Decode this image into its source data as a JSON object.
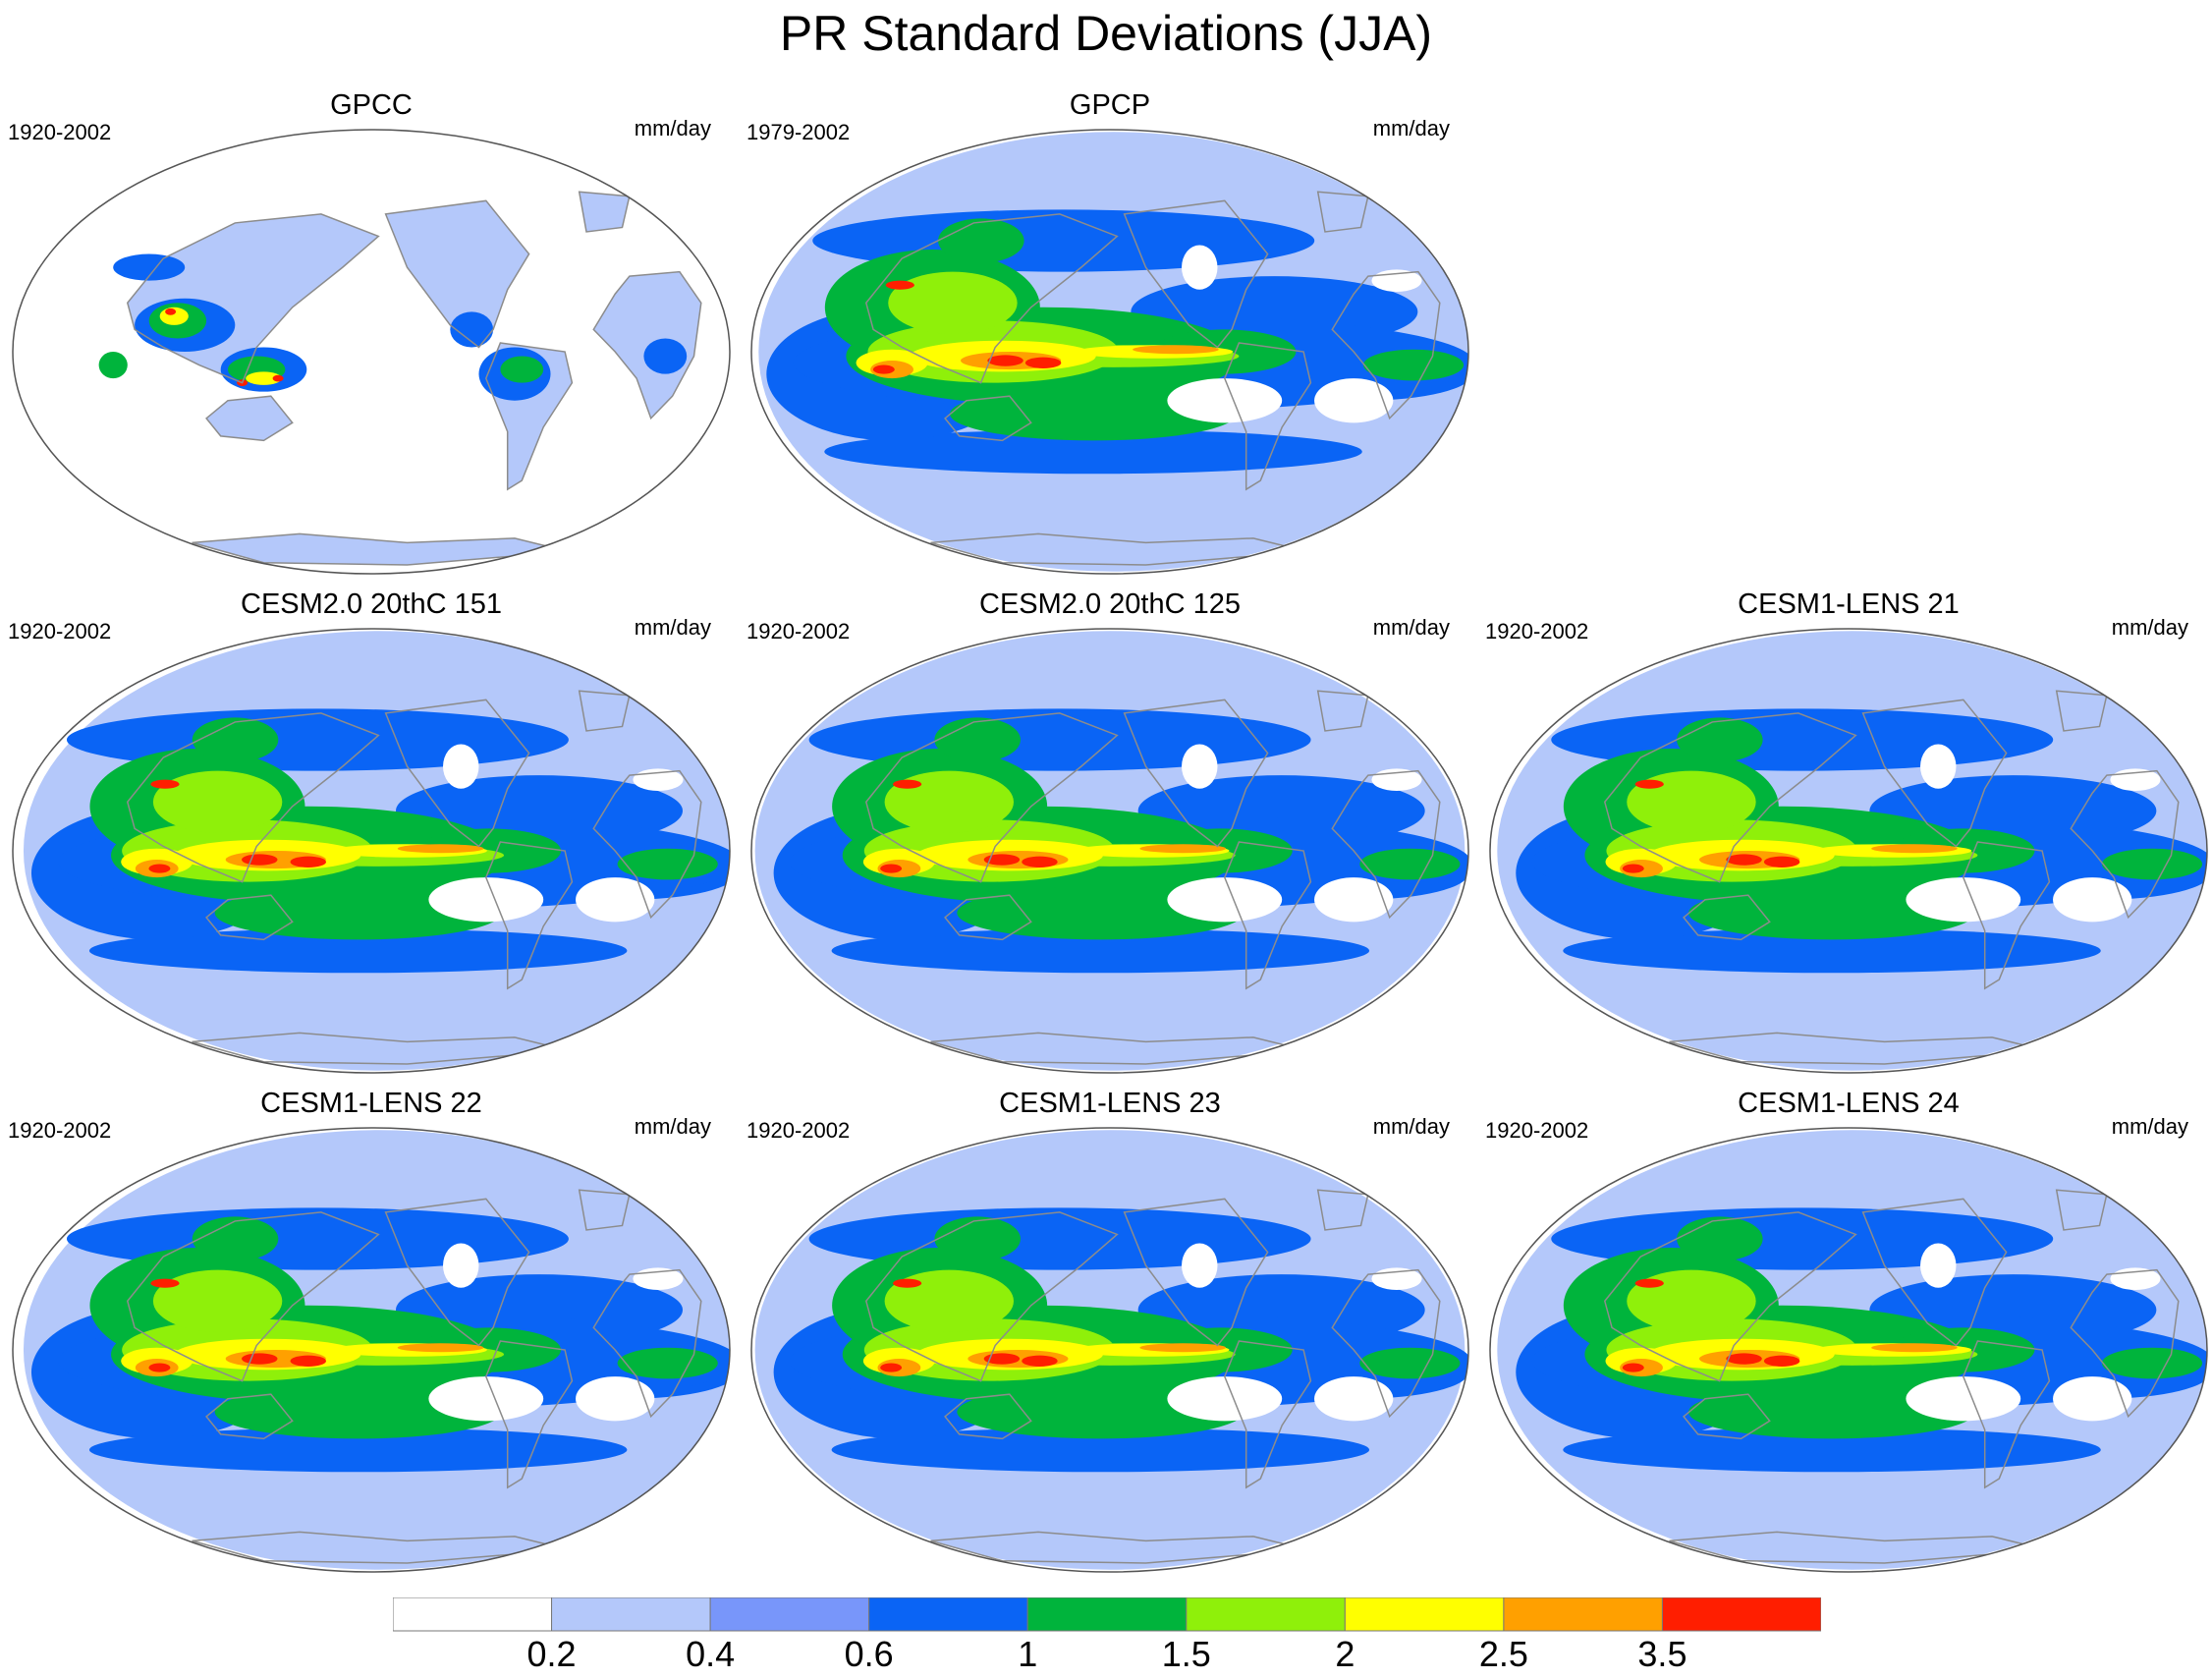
{
  "title": "PR Standard Deviations (JJA)",
  "colors": {
    "levels": [
      "#ffffff",
      "#b4c8fa",
      "#7896fa",
      "#0a64f5",
      "#00b43c",
      "#8ff00a",
      "#ffff00",
      "#ffa000",
      "#ff1e00"
    ],
    "coastline": "#8c8c8c",
    "outline": "#555555"
  },
  "colorbar": {
    "labels": [
      "0.2",
      "0.4",
      "0.6",
      "1",
      "1.5",
      "2",
      "2.5",
      "3.5"
    ]
  },
  "panels": [
    {
      "title": "GPCC",
      "period": "1920-2002",
      "units": "mm/day",
      "mask": "land"
    },
    {
      "title": "GPCP",
      "period": "1979-2002",
      "units": "mm/day",
      "mask": "none"
    },
    {
      "title": "CESM2.0 20thC 151",
      "period": "1920-2002",
      "units": "mm/day",
      "mask": "none"
    },
    {
      "title": "CESM2.0 20thC 125",
      "period": "1920-2002",
      "units": "mm/day",
      "mask": "none"
    },
    {
      "title": "CESM1-LENS 21",
      "period": "1920-2002",
      "units": "mm/day",
      "mask": "none"
    },
    {
      "title": "CESM1-LENS 22",
      "period": "1920-2002",
      "units": "mm/day",
      "mask": "none"
    },
    {
      "title": "CESM1-LENS 23",
      "period": "1920-2002",
      "units": "mm/day",
      "mask": "none"
    },
    {
      "title": "CESM1-LENS 24",
      "period": "1920-2002",
      "units": "mm/day",
      "mask": "none"
    }
  ]
}
